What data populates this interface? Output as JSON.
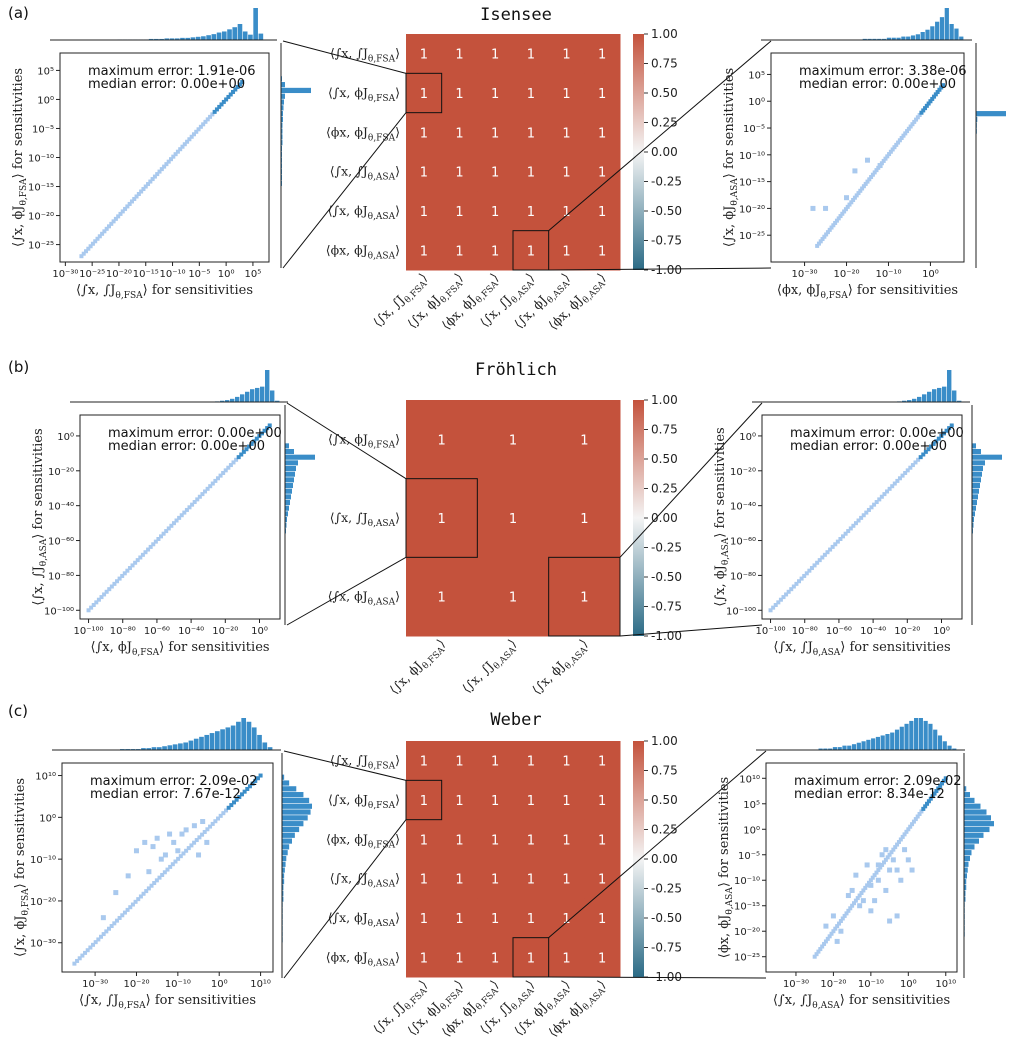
{
  "figure": {
    "colors": {
      "heatmap": "#c4523c",
      "hist": "#3a8dc8",
      "scatter_light": "#a9c9ee",
      "scatter_dark": "#3a8dc8",
      "cmap_low": "#2b6b86",
      "cmap_mid": "#f4f4f4",
      "cmap_high": "#c4523c"
    },
    "colorbar_ticks": [
      "1.00",
      "0.75",
      "0.50",
      "0.25",
      "0.00",
      "-0.25",
      "-0.50",
      "-0.75",
      "-1.00"
    ]
  },
  "chart_data": [
    {
      "panel": "(a)",
      "type": "heatmap",
      "title": "Isensee",
      "labels": [
        "⟨∫x, ∫J_{θ,FSA}⟩",
        "⟨∫x, ϕJ_{θ,FSA}⟩",
        "⟨ϕx, ϕJ_{θ,FSA}⟩",
        "⟨∫x, ∫J_{θ,ASA}⟩",
        "⟨∫x, ϕJ_{θ,ASA}⟩",
        "⟨ϕx, ϕJ_{θ,ASA}⟩"
      ],
      "values": [
        [
          1,
          1,
          1,
          1,
          1,
          1
        ],
        [
          1,
          1,
          1,
          1,
          1,
          1
        ],
        [
          1,
          1,
          1,
          1,
          1,
          1
        ],
        [
          1,
          1,
          1,
          1,
          1,
          1
        ],
        [
          1,
          1,
          1,
          1,
          1,
          1
        ],
        [
          1,
          1,
          1,
          1,
          1,
          1
        ]
      ],
      "cell_text": "1",
      "highlight_cells": [
        [
          1,
          0
        ],
        [
          5,
          3
        ]
      ],
      "colorbar_range": [
        -1,
        1
      ],
      "left_scatter": {
        "type": "scatter",
        "xlabel": "⟨∫x, ∫J_{θ,FSA}⟩ for sensitivities",
        "ylabel": "⟨∫x, ϕJ_{θ,FSA}⟩ for sensitivities",
        "annotation": [
          "maximum error: 1.91e-06",
          "median error: 0.00e+00"
        ],
        "xlim_exp": [
          -31,
          8
        ],
        "ylim_exp": [
          -28,
          8
        ],
        "xticks": [
          "10⁻³⁰",
          "10⁻²⁵",
          "10⁻²⁰",
          "10⁻¹⁵",
          "10⁻¹⁰",
          "10⁻⁵",
          "10⁰",
          "10⁵"
        ],
        "xtick_exp": [
          -30,
          -25,
          -20,
          -15,
          -10,
          -5,
          0,
          5
        ],
        "yticks": [
          "10⁵",
          "10⁰",
          "10⁻⁵",
          "10⁻¹⁰",
          "10⁻¹⁵",
          "10⁻²⁰",
          "10⁻²⁵"
        ],
        "ytick_exp": [
          5,
          0,
          -5,
          -10,
          -15,
          -20,
          -25
        ],
        "diag_range_exp": [
          -27,
          3
        ],
        "offdiag": [],
        "hist_top": [
          0,
          0,
          0,
          0,
          0,
          0,
          0,
          0,
          0,
          0,
          0,
          1,
          1,
          1,
          1,
          1,
          1,
          2,
          2,
          2,
          3,
          3,
          3,
          4,
          4,
          5,
          6,
          7,
          9,
          11,
          14,
          16,
          20,
          24,
          30,
          16,
          10,
          60,
          12,
          0
        ],
        "hist_right": [
          0,
          0,
          0,
          0,
          2,
          8,
          60,
          8,
          6,
          5,
          4,
          4,
          3,
          3,
          3,
          3,
          2,
          2,
          2,
          2,
          2,
          2,
          2,
          1,
          1,
          1,
          1,
          1,
          1,
          1,
          0,
          0,
          0,
          0,
          0,
          0
        ]
      },
      "right_scatter": {
        "type": "scatter",
        "xlabel": "⟨ϕx, ϕJ_{θ,FSA}⟩ for sensitivities",
        "ylabel": "⟨∫x, ϕJ_{θ,ASA}⟩ for sensitivities",
        "annotation": [
          "maximum error: 3.38e-06",
          "median error: 0.00e+00"
        ],
        "xlim_exp": [
          -38,
          8
        ],
        "ylim_exp": [
          -30,
          9
        ],
        "xticks": [
          "10⁻³⁰",
          "10⁻²⁰",
          "10⁻¹⁰",
          "10⁰"
        ],
        "xtick_exp": [
          -30,
          -20,
          -10,
          0
        ],
        "yticks": [
          "10⁵",
          "10⁰",
          "10⁻⁵",
          "10⁻¹⁰",
          "10⁻¹⁵",
          "10⁻²⁰",
          "10⁻²⁵"
        ],
        "ytick_exp": [
          5,
          0,
          -5,
          -10,
          -15,
          -20,
          -25
        ],
        "diag_range_exp": [
          -27,
          3
        ],
        "offdiag": [
          [
            -18,
            -13
          ],
          [
            -15,
            -11
          ],
          [
            -28,
            -20
          ],
          [
            -25,
            -20
          ],
          [
            -20,
            -18
          ],
          [
            -12,
            -12
          ]
        ],
        "hist_top": [
          0,
          0,
          0,
          0,
          0,
          0,
          0,
          0,
          0,
          0,
          0,
          0,
          0,
          0,
          0,
          0,
          0,
          0,
          0,
          1,
          1,
          1,
          1,
          1,
          2,
          2,
          2,
          3,
          3,
          4,
          5,
          7,
          9,
          12,
          16,
          20,
          28,
          14,
          10,
          3
        ],
        "hist_right": [
          0,
          0,
          0,
          0,
          0,
          0,
          0,
          0,
          0,
          0,
          70,
          3,
          2,
          2,
          1,
          1,
          1,
          1,
          1,
          1,
          1,
          1,
          1,
          1,
          1,
          1,
          1,
          1,
          1,
          1,
          0,
          0,
          0,
          0,
          0,
          0
        ]
      }
    },
    {
      "panel": "(b)",
      "type": "heatmap",
      "title": "Fröhlich",
      "labels": [
        "⟨∫x, ϕJ_{θ,FSA}⟩",
        "⟨∫x, ∫J_{θ,ASA}⟩",
        "⟨∫x, ϕJ_{θ,ASA}⟩"
      ],
      "values": [
        [
          1,
          1,
          1
        ],
        [
          1,
          1,
          1
        ],
        [
          1,
          1,
          1
        ]
      ],
      "cell_text": "1",
      "highlight_cells": [
        [
          1,
          0
        ],
        [
          2,
          2
        ]
      ],
      "colorbar_range": [
        -1,
        1
      ],
      "left_scatter": {
        "type": "scatter",
        "xlabel": "⟨∫x, ϕJ_{θ,FSA}⟩ for sensitivities",
        "ylabel": "⟨∫x, ∫J_{θ,ASA}⟩ for sensitivities",
        "annotation": [
          "maximum error: 0.00e+00",
          "median error: 0.00e+00"
        ],
        "xlim_exp": [
          -105,
          12
        ],
        "ylim_exp": [
          -105,
          12
        ],
        "xticks": [
          "10⁻¹⁰⁰",
          "10⁻⁸⁰",
          "10⁻⁶⁰",
          "10⁻⁴⁰",
          "10⁻²⁰",
          "10⁰"
        ],
        "xtick_exp": [
          -100,
          -80,
          -60,
          -40,
          -20,
          0
        ],
        "yticks": [
          "10⁰",
          "10⁻²⁰",
          "10⁻⁴⁰",
          "10⁻⁶⁰",
          "10⁻⁸⁰",
          "10⁻¹⁰⁰"
        ],
        "ytick_exp": [
          0,
          -20,
          -40,
          -60,
          -80,
          -100
        ],
        "diag_range_exp": [
          -100,
          6
        ],
        "offdiag": [],
        "hist_top": [
          0,
          0,
          0,
          0,
          0,
          0,
          0,
          0,
          0,
          0,
          0,
          0,
          0,
          0,
          0,
          0,
          0,
          0,
          0,
          0,
          0,
          0,
          0,
          0,
          0,
          0,
          0,
          1,
          2,
          3,
          5,
          8,
          12,
          16,
          20,
          22,
          24,
          50,
          18,
          2
        ],
        "hist_right": [
          0,
          0,
          0,
          0,
          0,
          8,
          18,
          60,
          26,
          22,
          20,
          18,
          16,
          14,
          12,
          10,
          8,
          6,
          4,
          3,
          2,
          1,
          0,
          0,
          0,
          0,
          0,
          0,
          0,
          0,
          0,
          0,
          0,
          0,
          0,
          0
        ]
      },
      "right_scatter": {
        "type": "scatter",
        "xlabel": "⟨∫x, ∫J_{θ,ASA}⟩ for sensitivities",
        "ylabel": "⟨∫x, ϕJ_{θ,ASA}⟩ for sensitivities",
        "annotation": [
          "maximum error: 0.00e+00",
          "median error: 0.00e+00"
        ],
        "xlim_exp": [
          -105,
          12
        ],
        "ylim_exp": [
          -105,
          12
        ],
        "xticks": [
          "10⁻¹⁰⁰",
          "10⁻⁸⁰",
          "10⁻⁶⁰",
          "10⁻⁴⁰",
          "10⁻²⁰",
          "10⁰"
        ],
        "xtick_exp": [
          -100,
          -80,
          -60,
          -40,
          -20,
          0
        ],
        "yticks": [
          "10⁰",
          "10⁻²⁰",
          "10⁻⁴⁰",
          "10⁻⁶⁰",
          "10⁻⁸⁰",
          "10⁻¹⁰⁰"
        ],
        "ytick_exp": [
          0,
          -20,
          -40,
          -60,
          -80,
          -100
        ],
        "diag_range_exp": [
          -100,
          6
        ],
        "offdiag": [],
        "hist_top": [
          0,
          0,
          0,
          0,
          0,
          0,
          0,
          0,
          0,
          0,
          0,
          0,
          0,
          0,
          0,
          0,
          0,
          0,
          0,
          0,
          0,
          0,
          0,
          0,
          0,
          0,
          0,
          1,
          2,
          3,
          5,
          8,
          12,
          16,
          20,
          22,
          24,
          50,
          18,
          2
        ],
        "hist_right": [
          0,
          0,
          0,
          0,
          0,
          8,
          18,
          60,
          26,
          22,
          20,
          18,
          16,
          14,
          12,
          10,
          8,
          6,
          4,
          3,
          2,
          1,
          0,
          0,
          0,
          0,
          0,
          0,
          0,
          0,
          0,
          0,
          0,
          0,
          0,
          0
        ]
      }
    },
    {
      "panel": "(c)",
      "type": "heatmap",
      "title": "Weber",
      "labels": [
        "⟨∫x, ∫J_{θ,FSA}⟩",
        "⟨∫x, ϕJ_{θ,FSA}⟩",
        "⟨ϕx, ϕJ_{θ,FSA}⟩",
        "⟨∫x, ∫J_{θ,ASA}⟩",
        "⟨∫x, ϕJ_{θ,ASA}⟩",
        "⟨ϕx, ϕJ_{θ,ASA}⟩"
      ],
      "values": [
        [
          1,
          1,
          1,
          1,
          1,
          1
        ],
        [
          1,
          1,
          1,
          1,
          1,
          1
        ],
        [
          1,
          1,
          1,
          1,
          1,
          1
        ],
        [
          1,
          1,
          1,
          1,
          1,
          1
        ],
        [
          1,
          1,
          1,
          1,
          1,
          1
        ],
        [
          1,
          1,
          1,
          1,
          1,
          1
        ]
      ],
      "cell_text": "1",
      "highlight_cells": [
        [
          1,
          0
        ],
        [
          5,
          3
        ]
      ],
      "colorbar_range": [
        -1,
        1
      ],
      "left_scatter": {
        "type": "scatter",
        "xlabel": "⟨∫x, ∫J_{θ,FSA}⟩ for sensitivities",
        "ylabel": "⟨∫x, ϕJ_{θ,FSA}⟩ for sensitivities",
        "annotation": [
          "maximum error: 2.09e-02",
          "median error: 7.67e-12"
        ],
        "xlim_exp": [
          -38,
          13
        ],
        "ylim_exp": [
          -37,
          13
        ],
        "xticks": [
          "10⁻³⁰",
          "10⁻²⁰",
          "10⁻¹⁰",
          "10⁰",
          "10¹⁰"
        ],
        "xtick_exp": [
          -30,
          -20,
          -10,
          0,
          10
        ],
        "yticks": [
          "10¹⁰",
          "10⁰",
          "10⁻¹⁰",
          "10⁻²⁰",
          "10⁻³⁰"
        ],
        "ytick_exp": [
          10,
          0,
          -10,
          -20,
          -30
        ],
        "diag_range_exp": [
          -35,
          10
        ],
        "offdiag": [
          [
            -20,
            -8
          ],
          [
            -18,
            -6
          ],
          [
            -15,
            -5
          ],
          [
            -12,
            -4
          ],
          [
            -10,
            -8
          ],
          [
            -8,
            -3
          ],
          [
            -6,
            -2
          ],
          [
            -5,
            -9
          ],
          [
            -22,
            -14
          ],
          [
            -25,
            -18
          ],
          [
            -14,
            -10
          ],
          [
            -4,
            -1
          ],
          [
            -16,
            -7
          ],
          [
            -3,
            -6
          ],
          [
            -28,
            -24
          ],
          [
            -11,
            -6
          ],
          [
            -9,
            -4
          ],
          [
            -13,
            -9
          ],
          [
            -17,
            -13
          ]
        ],
        "hist_top": [
          0,
          0,
          0,
          0,
          0,
          0,
          0,
          0,
          0,
          0,
          0,
          1,
          1,
          1,
          1,
          2,
          2,
          3,
          3,
          4,
          5,
          6,
          7,
          8,
          10,
          12,
          14,
          16,
          18,
          20,
          22,
          24,
          26,
          30,
          34,
          30,
          24,
          16,
          8,
          3
        ],
        "hist_right": [
          0,
          0,
          3,
          10,
          20,
          30,
          38,
          42,
          40,
          36,
          30,
          24,
          18,
          14,
          10,
          8,
          6,
          5,
          4,
          3,
          3,
          2,
          2,
          2,
          1,
          1,
          1,
          1,
          1,
          1,
          1,
          0,
          0,
          0,
          0,
          0
        ]
      },
      "right_scatter": {
        "type": "scatter",
        "xlabel": "⟨∫x, ∫J_{θ,ASA}⟩ for sensitivities",
        "ylabel": "⟨ϕx, ϕJ_{θ,ASA}⟩ for sensitivities",
        "annotation": [
          "maximum error: 2.09e-02",
          "median error: 8.34e-12"
        ],
        "xlim_exp": [
          -38,
          13
        ],
        "ylim_exp": [
          -28,
          13
        ],
        "xticks": [
          "10⁻³⁰",
          "10⁻²⁰",
          "10⁻¹⁰",
          "10⁰",
          "10¹⁰"
        ],
        "xtick_exp": [
          -30,
          -20,
          -10,
          0,
          10
        ],
        "yticks": [
          "10¹⁰",
          "10⁵",
          "10⁰",
          "10⁻⁵",
          "10⁻¹⁰",
          "10⁻¹⁵",
          "10⁻²⁰",
          "10⁻²⁵"
        ],
        "ytick_exp": [
          10,
          5,
          0,
          -5,
          -10,
          -15,
          -20,
          -25
        ],
        "diag_range_exp": [
          -25,
          10
        ],
        "offdiag": [
          [
            -15,
            -12
          ],
          [
            -12,
            -14
          ],
          [
            -10,
            -16
          ],
          [
            -8,
            -10
          ],
          [
            -6,
            -12
          ],
          [
            -5,
            -18
          ],
          [
            -3,
            -8
          ],
          [
            -18,
            -20
          ],
          [
            -20,
            -17
          ],
          [
            -14,
            -9
          ],
          [
            -9,
            -14
          ],
          [
            -4,
            -6
          ],
          [
            -7,
            -5
          ],
          [
            -2,
            -10
          ],
          [
            -11,
            -7
          ],
          [
            -22,
            -19
          ],
          [
            -1,
            -4
          ],
          [
            0,
            -6
          ],
          [
            1,
            -8
          ],
          [
            -16,
            -13
          ],
          [
            -13,
            -15
          ],
          [
            -6,
            -4
          ],
          [
            -8,
            -7
          ],
          [
            -19,
            -22
          ],
          [
            -3,
            -17
          ],
          [
            -5,
            -8
          ],
          [
            -10,
            -11
          ]
        ],
        "hist_top": [
          0,
          0,
          0,
          0,
          0,
          0,
          0,
          0,
          0,
          0,
          0,
          1,
          1,
          1,
          2,
          2,
          3,
          3,
          4,
          5,
          6,
          7,
          8,
          9,
          10,
          11,
          12,
          14,
          16,
          18,
          20,
          22,
          22,
          20,
          18,
          14,
          10,
          6,
          3,
          1
        ],
        "hist_right": [
          0,
          0,
          0,
          0,
          3,
          8,
          14,
          22,
          30,
          36,
          40,
          34,
          26,
          20,
          14,
          10,
          8,
          6,
          5,
          4,
          3,
          3,
          2,
          2,
          1,
          1,
          1,
          1,
          1,
          1,
          0,
          0,
          0,
          0,
          0,
          0
        ]
      }
    }
  ]
}
